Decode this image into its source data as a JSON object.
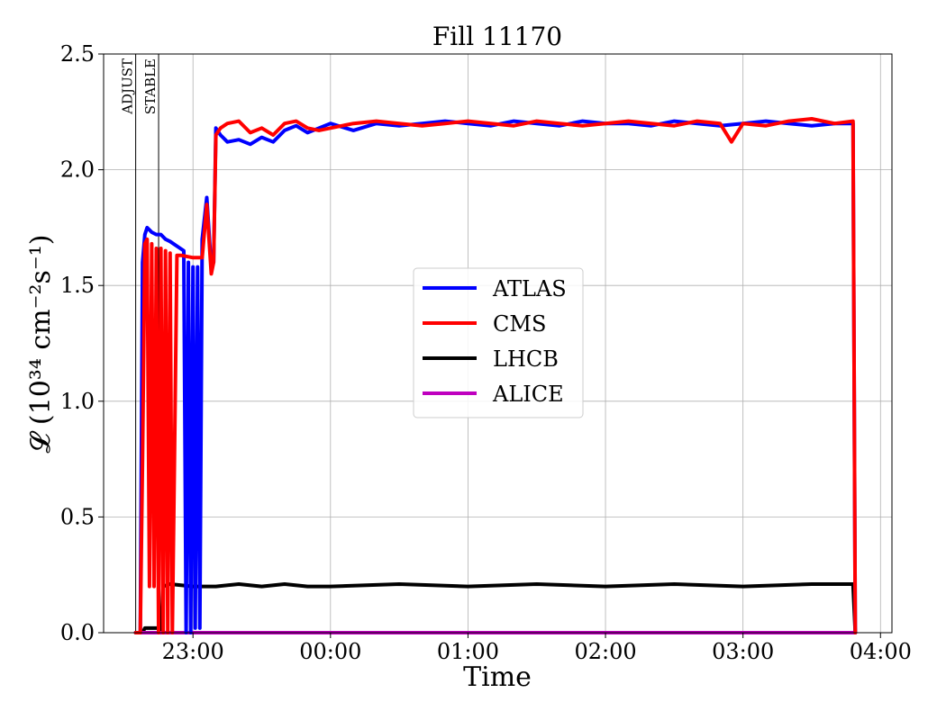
{
  "chart_data": {
    "type": "line",
    "title": "Fill 11170",
    "xlabel": "Time",
    "ylabel": "𝓛 (10³⁴ cm⁻²s⁻¹)",
    "xlim": [
      "22:21",
      "04:05"
    ],
    "ylim": [
      0,
      2.5
    ],
    "grid": true,
    "legend_position": "center",
    "x_ticks": [
      "23:00",
      "00:00",
      "01:00",
      "02:00",
      "03:00",
      "04:00"
    ],
    "y_ticks": [
      "0.0",
      "0.5",
      "1.0",
      "1.5",
      "2.0",
      "2.5"
    ],
    "annotations": [
      {
        "label": "ADJUST",
        "time": "22:35"
      },
      {
        "label": "STABLE",
        "time": "22:45"
      }
    ],
    "series": [
      {
        "name": "ATLAS",
        "color": "#0000ff",
        "points": [
          [
            "22:35",
            0.0
          ],
          [
            "22:37",
            0.0
          ],
          [
            "22:38",
            1.6
          ],
          [
            "22:39",
            1.72
          ],
          [
            "22:40",
            1.75
          ],
          [
            "22:42",
            1.73
          ],
          [
            "22:44",
            1.72
          ],
          [
            "22:46",
            1.72
          ],
          [
            "22:48",
            1.7
          ],
          [
            "22:50",
            1.69
          ],
          [
            "22:53",
            1.67
          ],
          [
            "22:56",
            1.65
          ],
          [
            "22:57",
            0.0
          ],
          [
            "22:58",
            1.6
          ],
          [
            "22:59",
            0.0
          ],
          [
            "23:00",
            1.58
          ],
          [
            "23:01",
            0.02
          ],
          [
            "23:02",
            1.58
          ],
          [
            "23:03",
            0.02
          ],
          [
            "23:04",
            1.7
          ],
          [
            "23:06",
            1.88
          ],
          [
            "23:08",
            1.58
          ],
          [
            "23:09",
            1.6
          ],
          [
            "23:10",
            2.18
          ],
          [
            "23:12",
            2.15
          ],
          [
            "23:15",
            2.12
          ],
          [
            "23:20",
            2.13
          ],
          [
            "23:25",
            2.11
          ],
          [
            "23:30",
            2.14
          ],
          [
            "23:35",
            2.12
          ],
          [
            "23:40",
            2.17
          ],
          [
            "23:45",
            2.19
          ],
          [
            "23:50",
            2.16
          ],
          [
            "23:55",
            2.18
          ],
          [
            "00:00",
            2.2
          ],
          [
            "00:10",
            2.17
          ],
          [
            "00:20",
            2.2
          ],
          [
            "00:30",
            2.19
          ],
          [
            "00:40",
            2.2
          ],
          [
            "00:50",
            2.21
          ],
          [
            "01:00",
            2.2
          ],
          [
            "01:10",
            2.19
          ],
          [
            "01:20",
            2.21
          ],
          [
            "01:30",
            2.2
          ],
          [
            "01:40",
            2.19
          ],
          [
            "01:50",
            2.21
          ],
          [
            "02:00",
            2.2
          ],
          [
            "02:10",
            2.2
          ],
          [
            "02:20",
            2.19
          ],
          [
            "02:30",
            2.21
          ],
          [
            "02:40",
            2.2
          ],
          [
            "02:50",
            2.19
          ],
          [
            "03:00",
            2.2
          ],
          [
            "03:10",
            2.21
          ],
          [
            "03:20",
            2.2
          ],
          [
            "03:30",
            2.19
          ],
          [
            "03:40",
            2.2
          ],
          [
            "03:48",
            2.2
          ],
          [
            "03:49",
            0.0
          ]
        ]
      },
      {
        "name": "CMS",
        "color": "#ff0000",
        "points": [
          [
            "22:35",
            0.0
          ],
          [
            "22:37",
            0.0
          ],
          [
            "22:38",
            0.75
          ],
          [
            "22:39",
            1.68
          ],
          [
            "22:40",
            1.7
          ],
          [
            "22:41",
            0.2
          ],
          [
            "22:42",
            1.68
          ],
          [
            "22:43",
            0.2
          ],
          [
            "22:44",
            1.66
          ],
          [
            "22:45",
            0.0
          ],
          [
            "22:46",
            1.66
          ],
          [
            "22:47",
            0.0
          ],
          [
            "22:48",
            1.65
          ],
          [
            "22:49",
            0.0
          ],
          [
            "22:50",
            1.64
          ],
          [
            "22:51",
            0.0
          ],
          [
            "22:53",
            1.63
          ],
          [
            "22:55",
            1.63
          ],
          [
            "23:00",
            1.62
          ],
          [
            "23:04",
            1.62
          ],
          [
            "23:06",
            1.85
          ],
          [
            "23:08",
            1.55
          ],
          [
            "23:09",
            1.6
          ],
          [
            "23:10",
            2.15
          ],
          [
            "23:12",
            2.18
          ],
          [
            "23:15",
            2.2
          ],
          [
            "23:20",
            2.21
          ],
          [
            "23:25",
            2.16
          ],
          [
            "23:30",
            2.18
          ],
          [
            "23:35",
            2.15
          ],
          [
            "23:40",
            2.2
          ],
          [
            "23:45",
            2.21
          ],
          [
            "23:50",
            2.18
          ],
          [
            "23:55",
            2.17
          ],
          [
            "00:00",
            2.18
          ],
          [
            "00:10",
            2.2
          ],
          [
            "00:20",
            2.21
          ],
          [
            "00:30",
            2.2
          ],
          [
            "00:40",
            2.19
          ],
          [
            "00:50",
            2.2
          ],
          [
            "01:00",
            2.21
          ],
          [
            "01:10",
            2.2
          ],
          [
            "01:20",
            2.19
          ],
          [
            "01:30",
            2.21
          ],
          [
            "01:40",
            2.2
          ],
          [
            "01:50",
            2.19
          ],
          [
            "02:00",
            2.2
          ],
          [
            "02:10",
            2.21
          ],
          [
            "02:20",
            2.2
          ],
          [
            "02:30",
            2.19
          ],
          [
            "02:40",
            2.21
          ],
          [
            "02:50",
            2.2
          ],
          [
            "02:55",
            2.12
          ],
          [
            "03:00",
            2.2
          ],
          [
            "03:10",
            2.19
          ],
          [
            "03:20",
            2.21
          ],
          [
            "03:30",
            2.22
          ],
          [
            "03:40",
            2.2
          ],
          [
            "03:48",
            2.21
          ],
          [
            "03:49",
            0.0
          ]
        ]
      },
      {
        "name": "LHCB",
        "color": "#000000",
        "points": [
          [
            "22:35",
            0.0
          ],
          [
            "22:38",
            0.0
          ],
          [
            "22:39",
            0.02
          ],
          [
            "22:45",
            0.02
          ],
          [
            "22:46",
            0.0
          ],
          [
            "22:47",
            0.2
          ],
          [
            "22:50",
            0.21
          ],
          [
            "23:00",
            0.2
          ],
          [
            "23:10",
            0.2
          ],
          [
            "23:20",
            0.21
          ],
          [
            "23:30",
            0.2
          ],
          [
            "23:40",
            0.21
          ],
          [
            "23:50",
            0.2
          ],
          [
            "00:00",
            0.2
          ],
          [
            "00:30",
            0.21
          ],
          [
            "01:00",
            0.2
          ],
          [
            "01:30",
            0.21
          ],
          [
            "02:00",
            0.2
          ],
          [
            "02:30",
            0.21
          ],
          [
            "03:00",
            0.2
          ],
          [
            "03:30",
            0.21
          ],
          [
            "03:48",
            0.21
          ],
          [
            "03:49",
            0.0
          ]
        ]
      },
      {
        "name": "ALICE",
        "color": "#bf00bf",
        "points": [
          [
            "22:35",
            0.0
          ],
          [
            "03:49",
            0.0
          ]
        ]
      }
    ]
  }
}
